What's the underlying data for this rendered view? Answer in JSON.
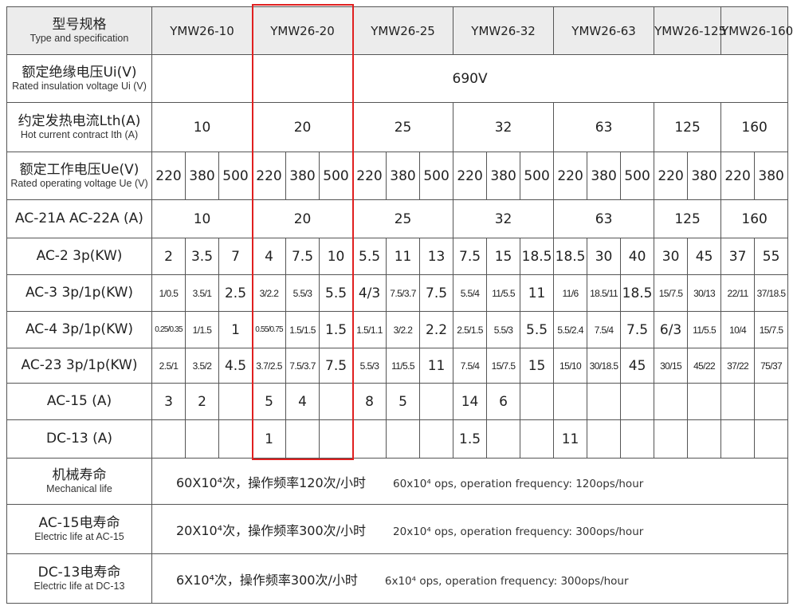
{
  "colors": {
    "highlight": "#e02020",
    "header_bg": "#ececec"
  },
  "header": {
    "label_zh": "型号规格",
    "label_en": "Type and specification",
    "models": [
      "YMW26-10",
      "YMW26-20",
      "YMW26-25",
      "YMW26-32",
      "YMW26-63",
      "YMW26-125",
      "YMW26-160"
    ],
    "highlighted_model": "YMW26-20"
  },
  "insulation": {
    "label_zh": "额定绝缘电压Ui(V)",
    "label_en": "Rated insulation voltage Ui (V)",
    "value": "690V"
  },
  "thermal": {
    "label_zh": "约定发热电流Lth(A)",
    "label_en": "Hot current contract Ith (A)",
    "values": [
      "10",
      "20",
      "25",
      "32",
      "63",
      "125",
      "160"
    ]
  },
  "operating": {
    "label_zh": "额定工作电压Ue(V)",
    "label_en": "Rated operating voltage Ue (V)",
    "values": [
      "220",
      "380",
      "500",
      "220",
      "380",
      "500",
      "220",
      "380",
      "500",
      "220",
      "380",
      "500",
      "220",
      "380",
      "500",
      "220",
      "380",
      "220",
      "380"
    ]
  },
  "ac21": {
    "label": "AC-21A  AC-22A  (A)",
    "values": [
      "10",
      "20",
      "25",
      "32",
      "63",
      "125",
      "160"
    ]
  },
  "rows": [
    {
      "label": "AC-2 3p(KW)",
      "values": [
        "2",
        "3.5",
        "7",
        "4",
        "7.5",
        "10",
        "5.5",
        "11",
        "13",
        "7.5",
        "15",
        "18.5",
        "18.5",
        "30",
        "40",
        "30",
        "45",
        "37",
        "55"
      ]
    },
    {
      "label": "AC-3 3p/1p(KW)",
      "values": [
        "1/0.5",
        "3.5/1",
        "2.5",
        "3/2.2",
        "5.5/3",
        "5.5",
        "4/3",
        "7.5/3.7",
        "7.5",
        "5.5/4",
        "11/5.5",
        "11",
        "11/6",
        "18.5/11",
        "18.5",
        "15/7.5",
        "30/13",
        "22/11",
        "37/18.5"
      ]
    },
    {
      "label": "AC-4 3p/1p(KW)",
      "values": [
        "0.25/0.35",
        "1/1.5",
        "1",
        "0.55/0.75",
        "1.5/1.5",
        "1.5",
        "1.5/1.1",
        "3/2.2",
        "2.2",
        "2.5/1.5",
        "5.5/3",
        "5.5",
        "5.5/2.4",
        "7.5/4",
        "7.5",
        "6/3",
        "11/5.5",
        "10/4",
        "15/7.5"
      ]
    },
    {
      "label": "AC-23 3p/1p(KW)",
      "values": [
        "2.5/1",
        "3.5/2",
        "4.5",
        "3.7/2.5",
        "7.5/3.7",
        "7.5",
        "5.5/3",
        "11/5.5",
        "11",
        "7.5/4",
        "15/7.5",
        "15",
        "15/10",
        "30/18.5",
        "45",
        "30/15",
        "45/22",
        "37/22",
        "75/37"
      ]
    },
    {
      "label": "AC-15    (A)",
      "values": [
        "3",
        "2",
        "",
        "5",
        "4",
        "",
        "8",
        "5",
        "",
        "14",
        "6",
        "",
        "",
        "",
        "",
        "",
        "",
        "",
        ""
      ]
    },
    {
      "label": "DC-13    (A)",
      "values": [
        "",
        "",
        "",
        "1",
        "",
        "",
        "",
        "",
        "",
        "1.5",
        "",
        "",
        "11",
        "",
        "",
        "",
        "",
        "",
        ""
      ]
    }
  ],
  "life": [
    {
      "label_zh": "机械寿命",
      "label_en": "Mechanical life",
      "text_zh": "60X10⁴次，操作频率120次/小时",
      "text_en": "60x10⁴ ops, operation frequency: 120ops/hour"
    },
    {
      "label_zh": "AC-15电寿命",
      "label_en": "Electric life at AC-15",
      "text_zh": "20X10⁴次，操作频率300次/小时",
      "text_en": "20x10⁴ ops, operation frequency: 300ops/hour"
    },
    {
      "label_zh": "DC-13电寿命",
      "label_en": "Electric life at DC-13",
      "text_zh": "6X10⁴次，操作频率300次/小时",
      "text_en": "6x10⁴ ops, operation frequency: 300ops/hour"
    }
  ]
}
